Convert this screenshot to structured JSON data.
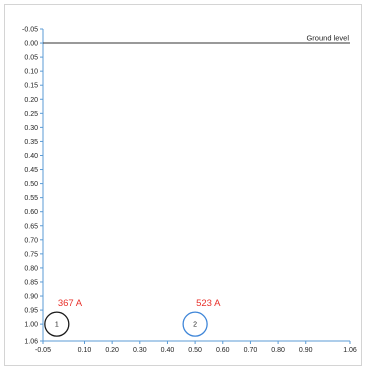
{
  "chart_data": {
    "type": "scatter",
    "title": "",
    "xlabel": "",
    "ylabel": "",
    "xlim": [
      -0.05,
      1.06
    ],
    "ylim": [
      -0.05,
      1.06
    ],
    "y_inverted": true,
    "grid": false,
    "xticks": [
      "-0.05",
      "0.10",
      "0.20",
      "0.30",
      "0.40",
      "0.50",
      "0.60",
      "0.70",
      "0.80",
      "0.90",
      "1.06"
    ],
    "yticks": [
      "-0.05",
      "0.00",
      "0.05",
      "0.10",
      "0.15",
      "0.20",
      "0.25",
      "0.30",
      "0.35",
      "0.40",
      "0.45",
      "0.50",
      "0.55",
      "0.60",
      "0.65",
      "0.70",
      "0.75",
      "0.80",
      "0.85",
      "0.90",
      "0.95",
      "1.00",
      "1.06"
    ],
    "ground": {
      "y": 0.0,
      "label": "Ground level"
    },
    "conductors": [
      {
        "id": "1",
        "x": 0.0,
        "y": 1.0,
        "current": "367 A",
        "ring_color": "#1a1a1a"
      },
      {
        "id": "2",
        "x": 0.5,
        "y": 1.0,
        "current": "523 A",
        "ring_color": "#3f86d8"
      }
    ],
    "colors": {
      "axis": "#5b9bd5",
      "current_label": "#e8302a",
      "ground_line": "#333333"
    }
  }
}
